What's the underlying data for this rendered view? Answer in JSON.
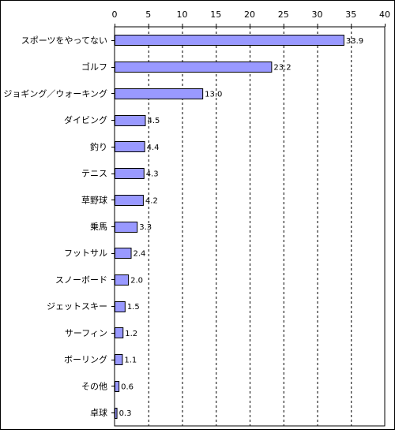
{
  "chart_data": {
    "type": "bar",
    "orientation": "horizontal",
    "categories": [
      "スポーツをやってない",
      "ゴルフ",
      "ジョギング／ウォーキング",
      "ダイビング",
      "釣り",
      "テニス",
      "草野球",
      "乗馬",
      "フットサル",
      "スノーボード",
      "ジェットスキー",
      "サーフィン",
      "ボーリング",
      "その他",
      "卓球"
    ],
    "values": [
      33.9,
      23.2,
      13.0,
      4.5,
      4.4,
      4.3,
      4.2,
      3.3,
      2.4,
      2.0,
      1.5,
      1.2,
      1.1,
      0.6,
      0.3
    ],
    "value_labels": [
      "33.9",
      "23.2",
      "13.0",
      "4.5",
      "4.4",
      "4.3",
      "4.2",
      "3.3",
      "2.4",
      "2.0",
      "1.5",
      "1.2",
      "1.1",
      "0.6",
      "0.3"
    ],
    "xlim": [
      0,
      40
    ],
    "xticks": [
      "0",
      "5",
      "10",
      "15",
      "20",
      "25",
      "30",
      "35",
      "40"
    ],
    "grid": "vertical-dashed",
    "legend": "none",
    "colors": {
      "bar": "#9999ff",
      "bar_border": "#000000",
      "grid": "#000000",
      "frame": "#000000"
    }
  }
}
